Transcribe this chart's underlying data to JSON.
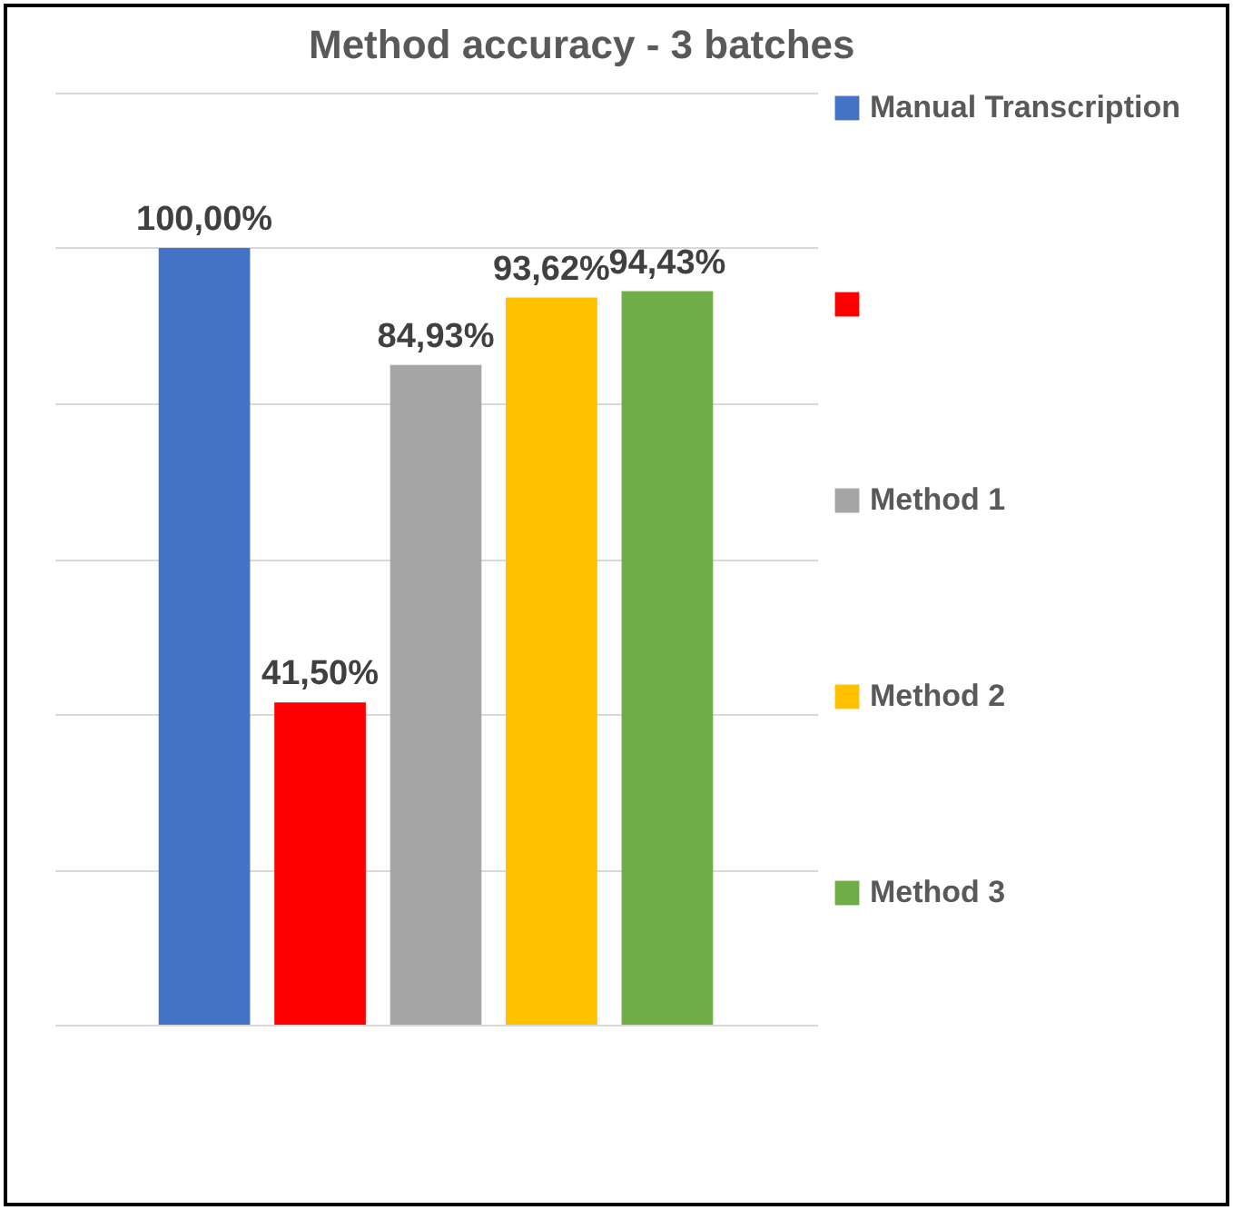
{
  "chart_data": {
    "type": "bar",
    "title": "Method accuracy - 3 batches",
    "categories": [
      null
    ],
    "series": [
      {
        "name": "Manual Transcription",
        "color": "#4472c4",
        "values": [
          100
        ],
        "value_labels": [
          "100,00%"
        ]
      },
      {
        "color": "#ff0000",
        "values": [
          41.5
        ],
        "value_labels": [
          "41,50%"
        ]
      },
      {
        "name": "Method 1",
        "color": "#a5a5a5",
        "values": [
          84.93
        ],
        "value_labels": [
          "84,93%"
        ]
      },
      {
        "name": "Method 2",
        "color": "#ffc000",
        "values": [
          93.62
        ],
        "value_labels": [
          "93,62%"
        ]
      },
      {
        "name": "Method 3",
        "color": "#70ad47",
        "values": [
          94.43
        ],
        "value_labels": [
          "94,43%"
        ]
      }
    ],
    "ylim": [
      0,
      120
    ],
    "yticks": [
      {
        "value": 0,
        "label": null
      },
      {
        "value": 20,
        "label": null
      },
      {
        "value": 40,
        "label": null
      },
      {
        "value": 60,
        "label": null
      },
      {
        "value": 80,
        "label": null
      },
      {
        "value": 100,
        "label": null
      },
      {
        "value": 120,
        "label": null
      }
    ],
    "tick_labels": false,
    "grid": "y",
    "legend": "right"
  }
}
